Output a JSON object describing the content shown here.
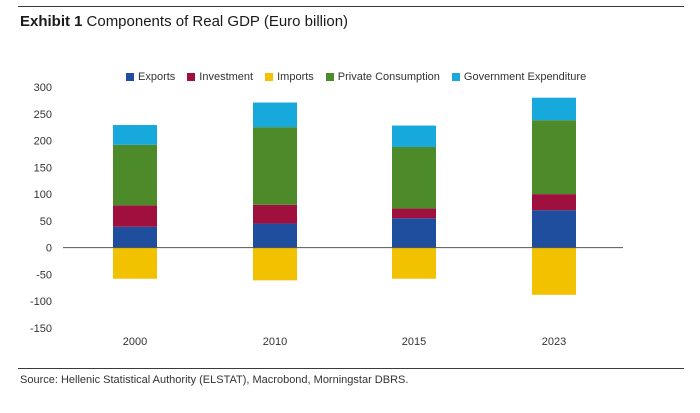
{
  "header": {
    "exhibit_label": "Exhibit 1",
    "title": "Components of Real GDP (Euro billion)"
  },
  "legend": {
    "items": [
      {
        "label": "Exports",
        "color": "#1f4e9e"
      },
      {
        "label": "Investment",
        "color": "#a0103e"
      },
      {
        "label": "Imports",
        "color": "#f2c200"
      },
      {
        "label": "Private Consumption",
        "color": "#4d8a2a"
      },
      {
        "label": "Government Expenditure",
        "color": "#17a9db"
      }
    ]
  },
  "footer": {
    "source": "Source: Hellenic Statistical Authority (ELSTAT), Macrobond, Morningstar DBRS."
  },
  "chart_data": {
    "type": "bar",
    "stacked": true,
    "title": "Components of Real GDP (Euro billion)",
    "categories": [
      "2000",
      "2010",
      "2015",
      "2023"
    ],
    "ylim": [
      -150,
      300
    ],
    "yticks": [
      -150,
      -100,
      -50,
      0,
      50,
      100,
      150,
      200,
      250,
      300
    ],
    "grid": false,
    "legend_position": "top",
    "series": [
      {
        "name": "Exports",
        "color": "#1f4e9e",
        "values": [
          39,
          45,
          55,
          70
        ]
      },
      {
        "name": "Investment",
        "color": "#a0103e",
        "values": [
          40,
          35,
          18,
          30
        ]
      },
      {
        "name": "Imports",
        "color": "#f2c200",
        "values": [
          -58,
          -61,
          -58,
          -88
        ]
      },
      {
        "name": "Private Consumption",
        "color": "#4d8a2a",
        "values": [
          113,
          145,
          115,
          138
        ]
      },
      {
        "name": "Government Expenditure",
        "color": "#17a9db",
        "values": [
          37,
          46,
          40,
          42
        ]
      }
    ]
  }
}
